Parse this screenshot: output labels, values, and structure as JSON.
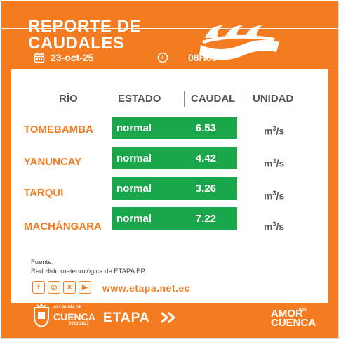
{
  "header": {
    "title_line1": "REPORTE DE",
    "title_line2": "CAUDALES",
    "date": "23-oct-25",
    "time": "08H00",
    "icons": [
      "calendar-icon",
      "clock-icon",
      "waves-logo-icon"
    ]
  },
  "table": {
    "columns": [
      "RÍO",
      "ESTADO",
      "CAUDAL",
      "UNIDAD"
    ],
    "rows": [
      {
        "river": "TOMEBAMBA",
        "status": "normal",
        "flow": "6.53",
        "unit": "m",
        "unit_exp": "3",
        "unit_tail": "/s"
      },
      {
        "river": "YANUNCAY",
        "status": "normal",
        "flow": "4.42",
        "unit": "m",
        "unit_exp": "3",
        "unit_tail": "/s"
      },
      {
        "river": "TARQUI",
        "status": "normal",
        "flow": "3.26",
        "unit": "m",
        "unit_exp": "3",
        "unit_tail": "/s"
      },
      {
        "river": "MACHÁNGARA",
        "status": "normal",
        "flow": "7.22",
        "unit": "m",
        "unit_exp": "3",
        "unit_tail": "/s"
      }
    ]
  },
  "source": {
    "label": "Fuente:",
    "text": "Red Hidrometeorológica de ETAPA EP"
  },
  "social": {
    "icons": [
      "facebook-icon",
      "instagram-icon",
      "x-icon",
      "youtube-icon"
    ],
    "glyphs": [
      "f",
      "◎",
      "X",
      "▶"
    ]
  },
  "website": "www.etapa.net.ec",
  "footer": {
    "cuenca_small": "ALCALDÍA DE",
    "cuenca_big": "CUENCA",
    "cuenca_years": "2023-2027",
    "etapa": "ETAPA",
    "amor_line1": "AMOR",
    "amor_por": "POR",
    "amor_line2": "CUENCA"
  },
  "colors": {
    "brand_orange": "#f47b20",
    "status_green": "#1aa64a",
    "header_grey": "#555555"
  }
}
